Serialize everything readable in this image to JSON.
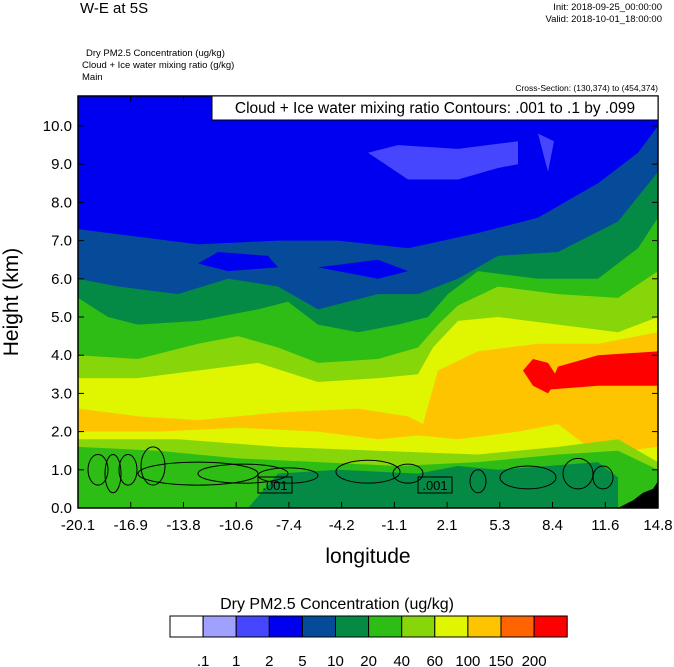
{
  "header": {
    "title": "W-E at 5S",
    "init": "Init: 2018-09-25_00:00:00",
    "valid": "Valid: 2018-10-01_18:00:00",
    "field_lines": [
      "Dry PM2.5 Concentration   (ug/kg)",
      "Cloud + Ice water mixing ratio   (g/kg)",
      "Main"
    ],
    "cross_section": "Cross-Section: (130,374) to (454,374)"
  },
  "chart_data": {
    "type": "heatmap",
    "title": "W-E at 5S",
    "xlabel": "longitude",
    "ylabel": "Height (km)",
    "xlim": [
      -20.1,
      14.8
    ],
    "ylim": [
      0.0,
      10.9
    ],
    "x_ticks": [
      "-20.1",
      "-16.9",
      "-13.8",
      "-10.6",
      "-7.4",
      "-4.2",
      "-1.1",
      "2.1",
      "5.3",
      "8.4",
      "11.6",
      "14.8"
    ],
    "y_ticks": [
      "0.0",
      "1.0",
      "2.0",
      "3.0",
      "4.0",
      "5.0",
      "6.0",
      "7.0",
      "8.0",
      "9.0",
      "10.0"
    ],
    "contour_title": "Cloud + Ice water mixing ratio Contours: .001 to .1 by .099",
    "contour_labels": [
      ".001",
      ".001"
    ],
    "colorbar": {
      "title": "Dry PM2.5 Concentration  (ug/kg)",
      "labels": [
        ".1",
        "1",
        "2",
        "5",
        "10",
        "20",
        "40",
        "60",
        "100",
        "150",
        "200"
      ],
      "colors": [
        "#ffffff",
        "#a0a0ff",
        "#4646ff",
        "#0000f0",
        "#064b9a",
        "#058a46",
        "#2dbd14",
        "#87d60a",
        "#e0f500",
        "#ffc400",
        "#ff6400",
        "#ff0000"
      ]
    }
  }
}
